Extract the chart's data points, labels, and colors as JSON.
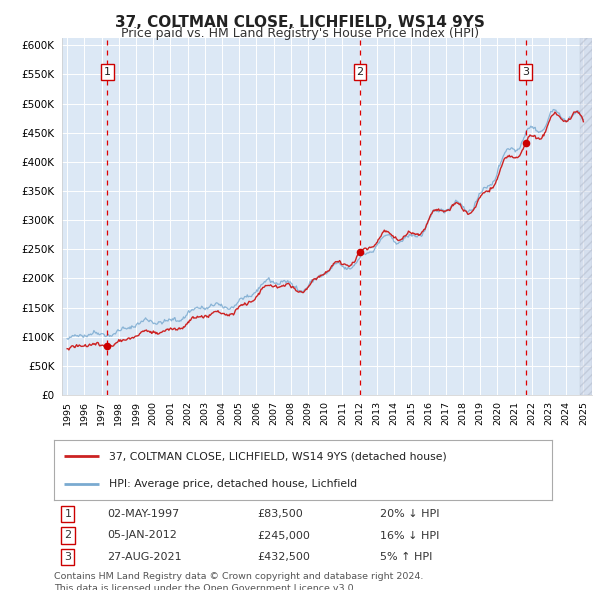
{
  "title": "37, COLTMAN CLOSE, LICHFIELD, WS14 9YS",
  "subtitle": "Price paid vs. HM Land Registry's House Price Index (HPI)",
  "plot_bg_color": "#dce8f5",
  "ylim": [
    0,
    612500
  ],
  "yticks": [
    0,
    50000,
    100000,
    150000,
    200000,
    250000,
    300000,
    350000,
    400000,
    450000,
    500000,
    550000,
    600000
  ],
  "xlim_start": 1994.7,
  "xlim_end": 2025.5,
  "sale_dates": [
    1997.33,
    2012.01,
    2021.65
  ],
  "sale_prices": [
    83500,
    245000,
    432500
  ],
  "sale_labels": [
    "1",
    "2",
    "3"
  ],
  "vline_color": "#dd0000",
  "dot_color": "#cc0000",
  "line1_color": "#cc2222",
  "line2_color": "#7aaad0",
  "legend_line1": "37, COLTMAN CLOSE, LICHFIELD, WS14 9YS (detached house)",
  "legend_line2": "HPI: Average price, detached house, Lichfield",
  "table_data": [
    [
      "1",
      "02-MAY-1997",
      "£83,500",
      "20% ↓ HPI"
    ],
    [
      "2",
      "05-JAN-2012",
      "£245,000",
      "16% ↓ HPI"
    ],
    [
      "3",
      "27-AUG-2021",
      "£432,500",
      "5% ↑ HPI"
    ]
  ],
  "footer": "Contains HM Land Registry data © Crown copyright and database right 2024.\nThis data is licensed under the Open Government Licence v3.0.",
  "grid_color": "#ffffff",
  "title_fontsize": 11,
  "subtitle_fontsize": 9
}
